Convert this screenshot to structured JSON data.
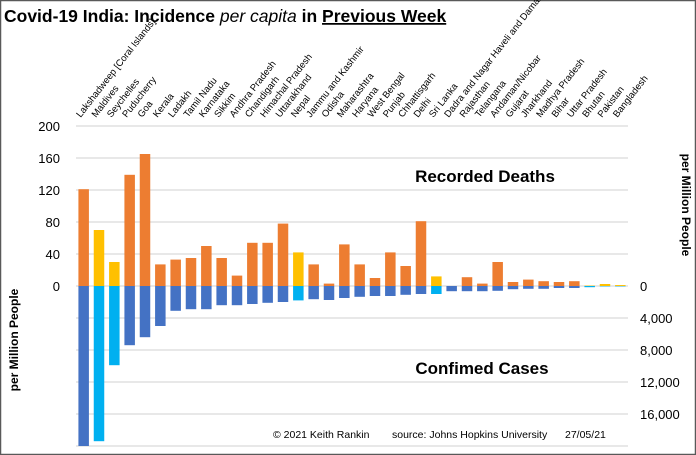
{
  "chart_data": {
    "type": "bar",
    "title": {
      "part1": "Covid-19 India: Incidence ",
      "part2_italic": "per capita",
      "part3": " in ",
      "part4_underlined": "Previous Week"
    },
    "categories": [
      "Lakshadweep [Coral Islands]",
      "Maldives",
      "Seychelles",
      "Puducherry",
      "Goa",
      "Kerala",
      "Ladakh",
      "Tamil Nadu",
      "Karnataka",
      "Sikkim",
      "Andhra Pradesh",
      "Chandigarh",
      "Himachal Pradesh",
      "Uttarakhand",
      "Nepal",
      "Jammu and Kashmir",
      "Odisha",
      "Maharashtra",
      "Haryana",
      "West Bengal",
      "Punjab",
      "Chhattisgarh",
      "Delhi",
      "Sri Lanka",
      "Dadra and Nagar Haveli and Daman",
      "Rajasthan",
      "Telangana",
      "Andaman/Nicobar",
      "Gujarat",
      "Jharkhand",
      "Madhya Pradesh",
      "Bihar",
      "Uttar Pradesh",
      "Bhutan",
      "Pakistan",
      "Bangladesh"
    ],
    "non_india": [
      "Maldives",
      "Seychelles",
      "Nepal",
      "Sri Lanka",
      "Bhutan",
      "Pakistan",
      "Bangladesh"
    ],
    "series": [
      {
        "name": "Recorded Deaths",
        "axis": "left",
        "direction": "up",
        "values": [
          121,
          70,
          30,
          139,
          165,
          27,
          33,
          35,
          50,
          35,
          13,
          54,
          54,
          78,
          42,
          27,
          3,
          52,
          27,
          10,
          42,
          25,
          81,
          12,
          0,
          11,
          3,
          30,
          5,
          8,
          6,
          5,
          6,
          0.5,
          2.5,
          1.2
        ]
      },
      {
        "name": "Confimed Cases",
        "axis": "right",
        "direction": "down",
        "values": [
          20000,
          19400,
          9900,
          7400,
          6400,
          5000,
          3100,
          2900,
          2900,
          2400,
          2400,
          2250,
          2100,
          2000,
          1800,
          1650,
          1750,
          1500,
          1350,
          1250,
          1250,
          1100,
          1000,
          1000,
          650,
          650,
          650,
          600,
          400,
          350,
          350,
          250,
          250,
          150,
          50,
          50
        ]
      }
    ],
    "left_axis": {
      "label": "per Million People",
      "ticks": [
        "200",
        "160",
        "120",
        "80",
        "40",
        "0"
      ],
      "range": [
        0,
        200
      ]
    },
    "right_axis": {
      "label": "per Million People",
      "ticks": [
        "0",
        "4,000",
        "8,000",
        "12,000",
        "16,000"
      ],
      "range": [
        0,
        20000
      ]
    },
    "grid": true,
    "colors": {
      "deaths_india": "#ED7D31",
      "deaths_other": "#FFC000",
      "cases_india": "#4472C4",
      "cases_other": "#00B0F0",
      "grid": "#D9D9D9"
    },
    "footer": {
      "copyright": "© 2021  Keith Rankin",
      "source": "source:  Johns Hopkins  University",
      "date": "27/05/21"
    }
  }
}
